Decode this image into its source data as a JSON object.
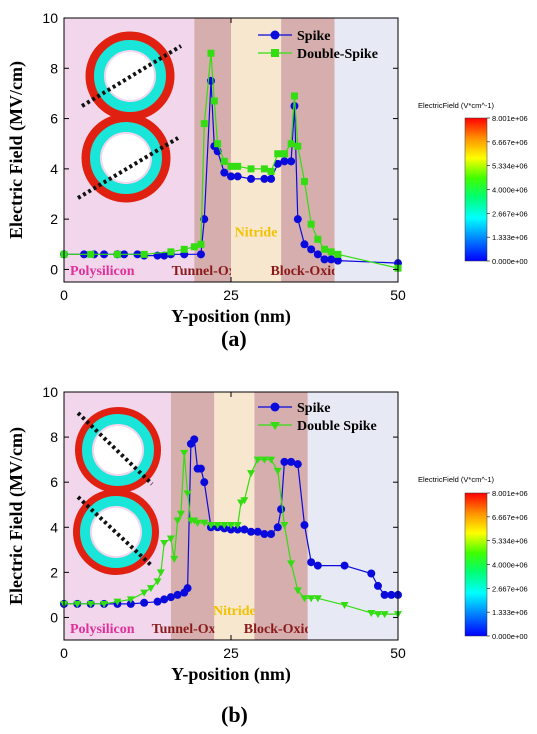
{
  "chart_data": [
    {
      "panel_label": "(a)",
      "type": "line",
      "xlabel": "Y-position (nm)",
      "ylabel": "Electric Field (MV/cm)",
      "xlim": [
        0,
        50
      ],
      "ylim": [
        -0.5,
        10
      ],
      "xticks": [
        0,
        25,
        50
      ],
      "yticks": [
        0,
        2,
        4,
        6,
        8,
        10
      ],
      "legend_position": "top-right",
      "regions": [
        {
          "label": "Polysilicon",
          "x0": 0,
          "x1": 19.5,
          "color": "#f2d7ec",
          "text_color": "#e0309a"
        },
        {
          "label": "Tunnel-Oxide",
          "x0": 19.5,
          "x1": 25,
          "color": "#d6aeae",
          "text_color": "#8b1a1a"
        },
        {
          "label": "Nitride",
          "x0": 25,
          "x1": 32.5,
          "color": "#f8e7cf",
          "text_color": "#f2c200"
        },
        {
          "label": "Block-Oxide",
          "x0": 32.5,
          "x1": 40.5,
          "color": "#d6aeae",
          "text_color": "#8b1a1a"
        },
        {
          "label": "",
          "x0": 40.5,
          "x1": 50,
          "color": "#e7e9f5",
          "text_color": "#000000"
        }
      ],
      "series": [
        {
          "name": "Spike",
          "color": "#0a0adc",
          "marker": "circle",
          "x": [
            0,
            3,
            4.5,
            6,
            8,
            9,
            11,
            12,
            14,
            15,
            16,
            18,
            20.5,
            21,
            22,
            22.5,
            23,
            24,
            25,
            26,
            28,
            30,
            31,
            32,
            33,
            34,
            34.5,
            35,
            36,
            37,
            38,
            39,
            40,
            41,
            50
          ],
          "y": [
            0.6,
            0.6,
            0.6,
            0.6,
            0.6,
            0.6,
            0.6,
            0.55,
            0.55,
            0.55,
            0.6,
            0.6,
            0.6,
            2.0,
            7.5,
            4.9,
            4.7,
            3.85,
            3.7,
            3.7,
            3.6,
            3.6,
            3.6,
            4.2,
            4.3,
            4.3,
            6.5,
            2.0,
            1.0,
            0.8,
            0.6,
            0.4,
            0.4,
            0.35,
            0.25
          ]
        },
        {
          "name": "Double-Spike",
          "color": "#33dd11",
          "marker": "square",
          "x": [
            0,
            4,
            8,
            12,
            16,
            18,
            19.5,
            20.5,
            21,
            22,
            22.5,
            23,
            24,
            25,
            26,
            28,
            30,
            31,
            32,
            33,
            34,
            34.5,
            35,
            36,
            37,
            38,
            39,
            40,
            41,
            50
          ],
          "y": [
            0.6,
            0.6,
            0.6,
            0.6,
            0.7,
            0.8,
            0.9,
            1.0,
            5.8,
            8.6,
            6.7,
            5.0,
            4.3,
            4.1,
            4.1,
            4.0,
            4.0,
            3.9,
            4.6,
            4.6,
            5.0,
            6.9,
            4.9,
            3.5,
            1.8,
            1.2,
            0.8,
            0.7,
            0.6,
            0.05
          ]
        }
      ]
    },
    {
      "panel_label": "(b)",
      "type": "line",
      "xlabel": "Y-position (nm)",
      "ylabel": "Electric Field (MV/cm)",
      "xlim": [
        0,
        50
      ],
      "ylim": [
        -1,
        10
      ],
      "xticks": [
        0,
        25,
        50
      ],
      "yticks": [
        0,
        2,
        4,
        6,
        8,
        10
      ],
      "legend_position": "top-right",
      "regions": [
        {
          "label": "Polysilicon",
          "x0": 0,
          "x1": 16,
          "color": "#f2d7ec",
          "text_color": "#e0309a"
        },
        {
          "label": "Tunnel-Oxide",
          "x0": 16,
          "x1": 22.5,
          "color": "#d6aeae",
          "text_color": "#8b1a1a"
        },
        {
          "label": "Nitride",
          "x0": 22.5,
          "x1": 28.5,
          "color": "#f8e7cf",
          "text_color": "#f2c200"
        },
        {
          "label": "Block-Oxide",
          "x0": 28.5,
          "x1": 36.5,
          "color": "#d6aeae",
          "text_color": "#8b1a1a"
        },
        {
          "label": "",
          "x0": 36.5,
          "x1": 50,
          "color": "#e7e9f5",
          "text_color": "#000000"
        }
      ],
      "series": [
        {
          "name": "Spike",
          "color": "#0a0adc",
          "marker": "circle",
          "x": [
            0,
            2,
            4,
            6,
            8,
            10,
            12,
            14,
            15,
            16,
            17,
            18,
            18.5,
            19,
            19.5,
            20,
            20.5,
            21,
            22,
            23,
            24,
            25,
            26,
            27,
            28,
            29,
            30,
            31,
            32,
            32.5,
            33,
            34,
            35,
            36,
            37,
            38,
            42,
            46,
            47,
            48,
            49,
            50
          ],
          "y": [
            0.6,
            0.6,
            0.6,
            0.6,
            0.6,
            0.6,
            0.65,
            0.7,
            0.8,
            0.9,
            1.0,
            1.1,
            1.3,
            7.7,
            7.9,
            6.6,
            6.6,
            6.0,
            4.0,
            4.0,
            3.95,
            3.9,
            3.9,
            3.9,
            3.8,
            3.8,
            3.7,
            3.7,
            4.0,
            4.8,
            6.9,
            6.9,
            6.8,
            4.1,
            2.45,
            2.3,
            2.3,
            1.95,
            1.4,
            1.0,
            1.0,
            1.0
          ]
        },
        {
          "name": "Double Spike",
          "color": "#33dd11",
          "marker": "triangle-down",
          "x": [
            0,
            2,
            4,
            6,
            8,
            10,
            12,
            13,
            14,
            14.5,
            15,
            16,
            16.5,
            17,
            17.5,
            18,
            18.5,
            19,
            19.5,
            20,
            21,
            22,
            23,
            24,
            25,
            26,
            26.5,
            27,
            28,
            29,
            30,
            31,
            32,
            33,
            34,
            35,
            36,
            37,
            38,
            42,
            46,
            47,
            48,
            50
          ],
          "y": [
            0.6,
            0.6,
            0.6,
            0.6,
            0.7,
            0.8,
            1.1,
            1.3,
            1.6,
            2.0,
            3.3,
            3.5,
            2.6,
            4.3,
            4.6,
            7.3,
            5.5,
            4.3,
            4.3,
            4.2,
            4.2,
            4.1,
            4.1,
            4.1,
            4.1,
            4.1,
            5.1,
            5.2,
            6.4,
            7.0,
            7.0,
            7.0,
            6.5,
            4.1,
            2.4,
            1.2,
            0.85,
            0.85,
            0.85,
            0.55,
            0.2,
            0.15,
            0.15,
            0.15
          ]
        }
      ]
    }
  ],
  "colorbar": {
    "title": "ElectricField (V*cm^-1)",
    "ticks": [
      "8.001e+06",
      "6.667e+06",
      "5.334e+06",
      "4.000e+06",
      "2.667e+06",
      "1.333e+06",
      "0.000e+00"
    ]
  }
}
